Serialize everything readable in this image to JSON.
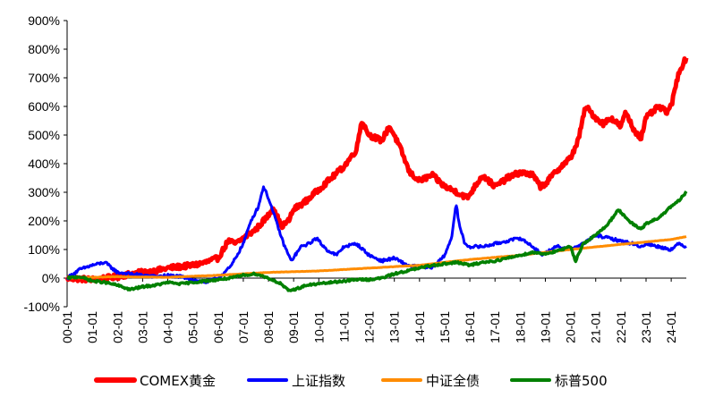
{
  "chart_data": {
    "type": "line",
    "title": "",
    "xlabel": "",
    "ylabel": "",
    "y_format": "percent",
    "ylim": [
      -100,
      900
    ],
    "y_ticks": [
      -100,
      0,
      100,
      200,
      300,
      400,
      500,
      600,
      700,
      800,
      900
    ],
    "x_range": [
      2000.0,
      2024.6
    ],
    "x_ticks": [
      "00-01",
      "01-01",
      "02-01",
      "03-01",
      "04-01",
      "05-01",
      "06-01",
      "07-01",
      "08-01",
      "09-01",
      "10-01",
      "11-01",
      "12-01",
      "13-01",
      "14-01",
      "15-01",
      "16-01",
      "17-01",
      "18-01",
      "19-01",
      "20-01",
      "21-01",
      "22-01",
      "23-01",
      "24-01"
    ],
    "grid": false,
    "legend_position": "bottom",
    "series": [
      {
        "name": "COMEX黄金",
        "color": "#ff0000",
        "x": [
          2000.0,
          2001.0,
          2001.5,
          2002.0,
          2002.5,
          2003.0,
          2003.5,
          2004.0,
          2004.5,
          2005.0,
          2005.5,
          2006.0,
          2006.4,
          2006.7,
          2007.0,
          2007.5,
          2008.0,
          2008.2,
          2008.5,
          2008.8,
          2009.0,
          2009.5,
          2010.0,
          2010.5,
          2011.0,
          2011.5,
          2011.7,
          2012.0,
          2012.5,
          2012.8,
          2013.0,
          2013.3,
          2013.6,
          2014.0,
          2014.5,
          2015.0,
          2015.5,
          2015.9,
          2016.5,
          2017.0,
          2017.5,
          2018.0,
          2018.5,
          2018.8,
          2019.0,
          2019.5,
          2020.0,
          2020.3,
          2020.6,
          2021.0,
          2021.3,
          2021.6,
          2022.0,
          2022.2,
          2022.5,
          2022.8,
          2023.0,
          2023.5,
          2023.8,
          2024.0,
          2024.3,
          2024.6
        ],
        "values": [
          0,
          -5,
          0,
          5,
          15,
          20,
          25,
          35,
          40,
          45,
          55,
          70,
          130,
          120,
          140,
          170,
          220,
          250,
          180,
          200,
          240,
          270,
          310,
          350,
          390,
          450,
          550,
          500,
          480,
          530,
          500,
          440,
          370,
          340,
          360,
          320,
          300,
          280,
          360,
          320,
          350,
          370,
          360,
          320,
          330,
          380,
          420,
          480,
          600,
          560,
          540,
          560,
          530,
          580,
          520,
          490,
          560,
          600,
          580,
          600,
          720,
          770
        ]
      },
      {
        "name": "上证指数",
        "color": "#0000ff",
        "x": [
          2000.0,
          2000.5,
          2001.0,
          2001.5,
          2002.0,
          2002.5,
          2003.0,
          2003.5,
          2004.0,
          2004.5,
          2005.0,
          2005.5,
          2006.0,
          2006.5,
          2007.0,
          2007.3,
          2007.6,
          2007.8,
          2008.0,
          2008.3,
          2008.6,
          2008.9,
          2009.3,
          2009.6,
          2009.9,
          2010.3,
          2010.7,
          2011.0,
          2011.5,
          2012.0,
          2012.5,
          2013.0,
          2013.5,
          2014.0,
          2014.5,
          2015.0,
          2015.3,
          2015.45,
          2015.6,
          2015.8,
          2016.0,
          2016.5,
          2017.0,
          2017.5,
          2018.0,
          2018.5,
          2018.9,
          2019.2,
          2019.5,
          2020.0,
          2020.5,
          2021.0,
          2021.5,
          2022.0,
          2022.5,
          2022.8,
          2023.0,
          2023.5,
          2024.0,
          2024.3,
          2024.6
        ],
        "values": [
          0,
          30,
          45,
          55,
          20,
          15,
          10,
          5,
          10,
          5,
          -5,
          -15,
          0,
          40,
          120,
          200,
          250,
          320,
          280,
          200,
          120,
          60,
          110,
          120,
          140,
          100,
          80,
          110,
          120,
          80,
          60,
          70,
          45,
          40,
          35,
          80,
          150,
          260,
          180,
          120,
          110,
          110,
          120,
          130,
          140,
          110,
          80,
          100,
          110,
          100,
          120,
          150,
          140,
          130,
          120,
          110,
          120,
          110,
          100,
          120,
          110
        ]
      },
      {
        "name": "中证全债",
        "color": "#ff8c00",
        "x": [
          2000.0,
          2002.0,
          2004.0,
          2006.0,
          2008.0,
          2010.0,
          2012.0,
          2014.0,
          2016.0,
          2018.0,
          2020.0,
          2022.0,
          2024.0,
          2024.6
        ],
        "values": [
          0,
          5,
          3,
          10,
          20,
          25,
          35,
          45,
          65,
          80,
          100,
          118,
          135,
          145
        ]
      },
      {
        "name": "标普500",
        "color": "#008000",
        "x": [
          2000.0,
          2000.5,
          2001.0,
          2001.5,
          2002.0,
          2002.5,
          2003.0,
          2003.5,
          2004.0,
          2004.5,
          2005.0,
          2005.5,
          2006.0,
          2006.5,
          2007.0,
          2007.5,
          2008.0,
          2008.5,
          2008.8,
          2009.2,
          2009.5,
          2010.0,
          2010.5,
          2011.0,
          2011.5,
          2012.0,
          2012.5,
          2013.0,
          2013.5,
          2014.0,
          2014.5,
          2015.0,
          2015.5,
          2016.0,
          2016.5,
          2017.0,
          2017.5,
          2018.0,
          2018.5,
          2019.0,
          2019.5,
          2020.0,
          2020.2,
          2020.5,
          2021.0,
          2021.5,
          2021.9,
          2022.3,
          2022.8,
          2023.0,
          2023.5,
          2024.0,
          2024.3,
          2024.6
        ],
        "values": [
          0,
          5,
          -10,
          -15,
          -25,
          -40,
          -30,
          -25,
          -15,
          -20,
          -15,
          -10,
          -5,
          0,
          10,
          15,
          0,
          -20,
          -45,
          -35,
          -25,
          -20,
          -15,
          -10,
          -5,
          -5,
          0,
          15,
          25,
          35,
          45,
          50,
          55,
          45,
          55,
          60,
          70,
          80,
          90,
          85,
          95,
          110,
          60,
          120,
          150,
          190,
          240,
          200,
          170,
          190,
          210,
          250,
          270,
          300
        ]
      }
    ]
  }
}
